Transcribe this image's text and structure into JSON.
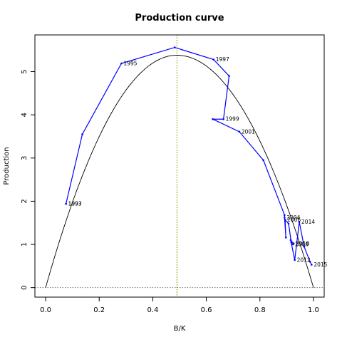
{
  "chart_data": {
    "type": "line",
    "title": "Production curve",
    "xlabel": "B/K",
    "ylabel": "Production",
    "xlim": [
      -0.04,
      1.04
    ],
    "ylim": [
      -0.22,
      5.85
    ],
    "xticks": [
      0.0,
      0.2,
      0.4,
      0.6,
      0.8,
      1.0
    ],
    "xtick_labels": [
      "0.0",
      "0.2",
      "0.4",
      "0.6",
      "0.8",
      "1.0"
    ],
    "yticks": [
      0,
      1,
      2,
      3,
      4,
      5
    ],
    "ytick_labels": [
      "0",
      "1",
      "2",
      "3",
      "4",
      "5"
    ],
    "grid": false,
    "series": [
      {
        "color": "#0000ff",
        "points": [
          {
            "x": 0.076,
            "y": 1.94,
            "label": "1993"
          },
          {
            "x": 0.076,
            "y": 1.94,
            "label": "1993"
          },
          {
            "x": 0.137,
            "y": 3.55,
            "label": ""
          },
          {
            "x": 0.283,
            "y": 5.19,
            "label": "1995"
          },
          {
            "x": 0.482,
            "y": 5.56,
            "label": ""
          },
          {
            "x": 0.627,
            "y": 5.28,
            "label": "1997"
          },
          {
            "x": 0.685,
            "y": 4.9,
            "label": ""
          },
          {
            "x": 0.664,
            "y": 3.9,
            "label": "1999"
          },
          {
            "x": 0.624,
            "y": 3.9,
            "label": ""
          },
          {
            "x": 0.723,
            "y": 3.61,
            "label": "2001"
          },
          {
            "x": 0.813,
            "y": 2.95,
            "label": ""
          },
          {
            "x": 0.892,
            "y": 1.68,
            "label": ""
          },
          {
            "x": 0.892,
            "y": 1.62,
            "label": "2004"
          },
          {
            "x": 0.897,
            "y": 1.16,
            "label": ""
          },
          {
            "x": 0.894,
            "y": 1.57,
            "label": "2006"
          },
          {
            "x": 0.907,
            "y": 1.48,
            "label": ""
          },
          {
            "x": 0.917,
            "y": 1.05,
            "label": ""
          },
          {
            "x": 0.923,
            "y": 1.0,
            "label": "2008"
          },
          {
            "x": 0.926,
            "y": 1.02,
            "label": "2010"
          },
          {
            "x": 0.915,
            "y": 1.1,
            "label": ""
          },
          {
            "x": 0.93,
            "y": 0.64,
            "label": "2012"
          },
          {
            "x": 0.947,
            "y": 1.52,
            "label": "2014"
          },
          {
            "x": 0.965,
            "y": 0.95,
            "label": ""
          },
          {
            "x": 0.987,
            "y": 0.6,
            "label": ""
          },
          {
            "x": 0.993,
            "y": 0.53,
            "label": "2015"
          }
        ]
      }
    ],
    "curve": {
      "color": "#000000",
      "type": "parabola",
      "x_range": [
        0,
        1
      ],
      "peak_x": 0.49,
      "peak_y": 5.38
    },
    "reference_lines": [
      {
        "orientation": "vertical",
        "x": 0.49,
        "color": "#777777",
        "style": "dotted"
      },
      {
        "orientation": "vertical",
        "x": 0.49,
        "color": "#cccc00",
        "style": "dotted"
      },
      {
        "orientation": "horizontal",
        "y": 0,
        "color": "#777777",
        "style": "dotted"
      }
    ]
  }
}
